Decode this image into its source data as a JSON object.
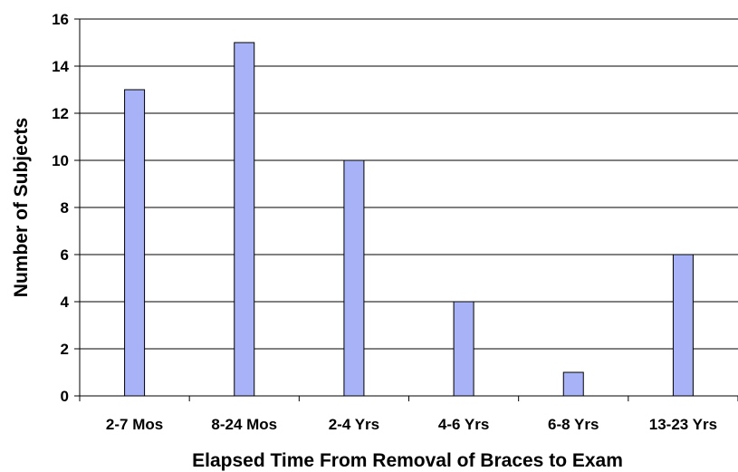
{
  "chart_data": {
    "type": "bar",
    "title": "",
    "xlabel": "Elapsed Time From Removal of Braces to Exam",
    "ylabel": "Number of Subjects",
    "categories": [
      "2-7 Mos",
      "8-24 Mos",
      "2-4 Yrs",
      "4-6 Yrs",
      "6-8 Yrs",
      "13-23 Yrs"
    ],
    "values": [
      13,
      15,
      10,
      4,
      1,
      6
    ],
    "ylim": [
      0,
      16
    ],
    "yticks": [
      0,
      2,
      4,
      6,
      8,
      10,
      12,
      14,
      16
    ],
    "grid": true,
    "legend": "none",
    "colors": {
      "bar_fill": "#a8b3f7",
      "bar_stroke": "#000000",
      "grid": "#000000"
    }
  }
}
